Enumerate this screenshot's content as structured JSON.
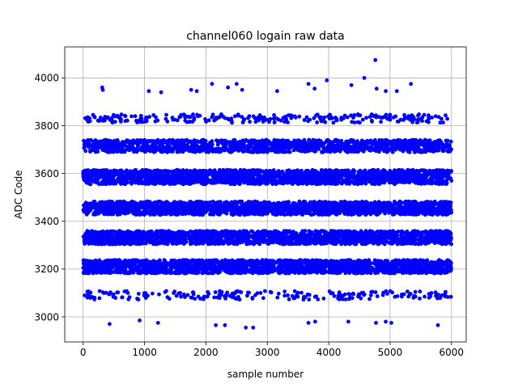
{
  "chart_data": {
    "type": "scatter",
    "title": "channel060 logain raw data",
    "xlabel": "sample number",
    "ylabel": "ADC Code",
    "xlim": [
      -300,
      6240
    ],
    "ylim": [
      2895,
      4130
    ],
    "xticks": [
      0,
      1000,
      2000,
      3000,
      4000,
      5000,
      6000
    ],
    "yticks": [
      3000,
      3200,
      3400,
      3600,
      3800,
      4000
    ],
    "grid": true,
    "marker_color": "#0000ff",
    "series": [
      {
        "n_samples": 6000,
        "bands": [
          {
            "center": 3090,
            "spread": 18,
            "density": 0.035
          },
          {
            "center": 3210,
            "spread": 28,
            "density": 0.33
          },
          {
            "center": 3332,
            "spread": 28,
            "density": 0.33
          },
          {
            "center": 3455,
            "spread": 28,
            "density": 0.33
          },
          {
            "center": 3585,
            "spread": 30,
            "density": 0.33
          },
          {
            "center": 3715,
            "spread": 26,
            "density": 0.24
          },
          {
            "center": 3830,
            "spread": 18,
            "density": 0.045
          }
        ],
        "outliers": [
          {
            "x": 310,
            "y": 3960
          },
          {
            "x": 320,
            "y": 3950
          },
          {
            "x": 1070,
            "y": 3945
          },
          {
            "x": 1270,
            "y": 3940
          },
          {
            "x": 1760,
            "y": 3950
          },
          {
            "x": 1850,
            "y": 3945
          },
          {
            "x": 2100,
            "y": 3975
          },
          {
            "x": 2360,
            "y": 3960
          },
          {
            "x": 2500,
            "y": 3975
          },
          {
            "x": 2590,
            "y": 3950
          },
          {
            "x": 3160,
            "y": 3945
          },
          {
            "x": 3670,
            "y": 3975
          },
          {
            "x": 3770,
            "y": 3955
          },
          {
            "x": 3970,
            "y": 3990
          },
          {
            "x": 4370,
            "y": 3970
          },
          {
            "x": 4580,
            "y": 4000
          },
          {
            "x": 4760,
            "y": 4075
          },
          {
            "x": 4780,
            "y": 3955
          },
          {
            "x": 4930,
            "y": 3945
          },
          {
            "x": 5110,
            "y": 3945
          },
          {
            "x": 5340,
            "y": 3975
          },
          {
            "x": 430,
            "y": 2970
          },
          {
            "x": 920,
            "y": 2985
          },
          {
            "x": 1220,
            "y": 2975
          },
          {
            "x": 2160,
            "y": 2965
          },
          {
            "x": 2310,
            "y": 2965
          },
          {
            "x": 2650,
            "y": 2955
          },
          {
            "x": 2770,
            "y": 2955
          },
          {
            "x": 3670,
            "y": 2975
          },
          {
            "x": 3780,
            "y": 2980
          },
          {
            "x": 4320,
            "y": 2980
          },
          {
            "x": 4770,
            "y": 2975
          },
          {
            "x": 4930,
            "y": 2980
          },
          {
            "x": 5020,
            "y": 2975
          },
          {
            "x": 5780,
            "y": 2965
          }
        ]
      }
    ]
  }
}
